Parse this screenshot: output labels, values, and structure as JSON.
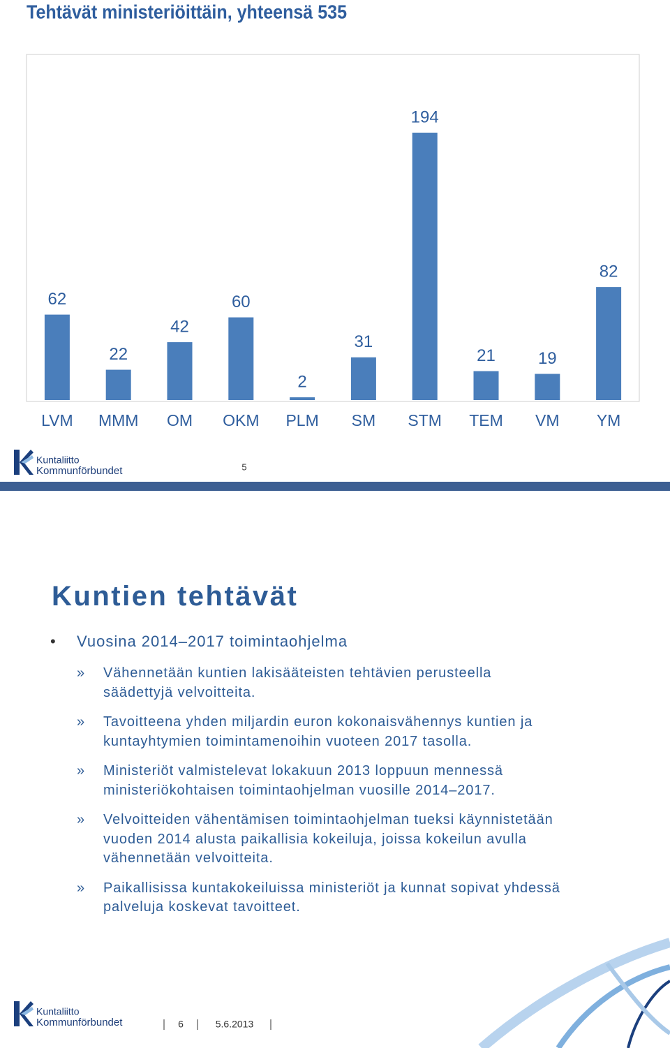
{
  "chart_data": {
    "type": "bar",
    "title": "Tehtävät ministeriöittäin, yhteensä 535",
    "categories": [
      "LVM",
      "MMM",
      "OM",
      "OKM",
      "PLM",
      "SM",
      "STM",
      "TEM",
      "VM",
      "YM"
    ],
    "values": [
      62,
      22,
      42,
      60,
      2,
      31,
      194,
      21,
      19,
      82
    ],
    "color": "#4a7ebb"
  },
  "slide1": {
    "logo": [
      "Kuntaliitto",
      "Kommunförbundet"
    ],
    "page_number": "5"
  },
  "slide2": {
    "title": "Kuntien tehtävät",
    "bullet": "Vuosina 2014–2017 toimintaohjelma",
    "items": [
      [
        "Vähennetään kuntien lakisääteisten tehtävien perusteella",
        "säädettyjä velvoitteita."
      ],
      [
        "Tavoitteena yhden miljardin euron kokonaisvähennys kuntien ja",
        "kuntayhtymien toimintamenoihin vuoteen 2017 tasolla."
      ],
      [
        "Ministeriöt valmistelevat lokakuun 2013 loppuun mennessä",
        "ministeriökohtaisen toimintaohjelman vuosille 2014–2017."
      ],
      [
        "Velvoitteiden vähentämisen toimintaohjelman tueksi käynnistetään",
        "vuoden 2014 alusta paikallisia kokeiluja, joissa kokeilun avulla",
        "vähennetään velvoitteita."
      ],
      [
        "Paikallisissa kuntakokeiluissa ministeriöt ja kunnat sopivat yhdessä",
        "palveluja koskevat tavoitteet."
      ]
    ],
    "logo": [
      "Kuntaliitto",
      "Kommunförbundet"
    ],
    "page_number": "6",
    "date": "5.6.2013"
  }
}
